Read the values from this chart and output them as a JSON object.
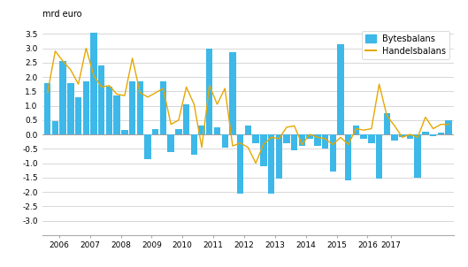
{
  "bar_values": [
    1.8,
    0.45,
    2.55,
    1.8,
    1.3,
    1.85,
    3.55,
    2.4,
    1.65,
    1.35,
    0.15,
    1.85,
    1.85,
    -0.85,
    0.2,
    1.85,
    -0.6,
    0.2,
    1.05,
    -0.7,
    0.3,
    3.0,
    0.25,
    -0.45,
    2.85,
    -2.05,
    0.3,
    -0.3,
    -1.1,
    -2.05,
    -1.55,
    -0.3,
    -0.55,
    -0.4,
    -0.15,
    -0.4,
    -0.5,
    -1.3,
    3.15,
    -1.6,
    0.3,
    -0.15,
    -0.3,
    -1.55,
    0.75,
    -0.2,
    -0.1,
    -0.15,
    -1.5,
    0.1,
    -0.05,
    0.05,
    0.5
  ],
  "line_values": [
    1.45,
    2.9,
    2.55,
    2.25,
    1.75,
    3.0,
    2.05,
    1.65,
    1.7,
    1.4,
    1.35,
    2.65,
    1.45,
    1.3,
    1.45,
    1.6,
    0.35,
    0.5,
    1.65,
    1.05,
    -0.45,
    1.7,
    1.05,
    1.6,
    -0.4,
    -0.3,
    -0.45,
    -1.0,
    -0.35,
    -0.1,
    -0.15,
    0.25,
    0.3,
    -0.35,
    0.0,
    -0.1,
    -0.15,
    -0.35,
    -0.1,
    -0.35,
    0.2,
    0.15,
    0.2,
    1.75,
    0.65,
    0.3,
    -0.1,
    0.0,
    -0.1,
    0.6,
    0.2,
    0.35,
    0.35
  ],
  "n_quarters": 53,
  "quarters_per_year": 4,
  "start_year": 2006,
  "end_year": 2017,
  "x_labels": [
    "2006",
    "2007",
    "2008",
    "2009",
    "2010",
    "2011",
    "2012",
    "2013",
    "2014",
    "2015",
    "2016",
    "2017"
  ],
  "ylabel_text": "mrd euro",
  "ylim": [
    -3.5,
    3.75
  ],
  "yticks": [
    -3.0,
    -2.5,
    -2.0,
    -1.5,
    -1.0,
    -0.5,
    0.0,
    0.5,
    1.0,
    1.5,
    2.0,
    2.5,
    3.0,
    3.5
  ],
  "bar_color": "#3db8e8",
  "line_color": "#e6a800",
  "legend_bar_label": "Bytesbalans",
  "legend_line_label": "Handelsbalans",
  "background_color": "#ffffff",
  "grid_color": "#c8c8c8",
  "spine_color": "#aaaaaa"
}
